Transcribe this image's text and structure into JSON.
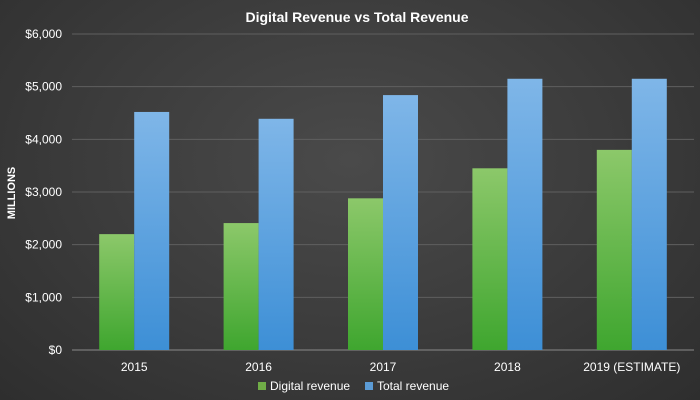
{
  "chart_data": {
    "type": "bar",
    "title": "Digital Revenue vs Total Revenue",
    "xlabel": "",
    "ylabel": "MILLIONS",
    "ylim": [
      0,
      6000
    ],
    "yticks": [
      "$0",
      "$1,000",
      "$2,000",
      "$3,000",
      "$4,000",
      "$5,000",
      "$6,000"
    ],
    "categories": [
      "2015",
      "2016",
      "2017",
      "2018",
      "2019 (ESTIMATE)"
    ],
    "series": [
      {
        "name": "Digital revenue",
        "color": "#70ad47",
        "values": [
          2200,
          2410,
          2880,
          3450,
          3800
        ]
      },
      {
        "name": "Total revenue",
        "color": "#5b9bd5",
        "values": [
          4520,
          4390,
          4840,
          5150,
          5150
        ]
      }
    ],
    "grid": true,
    "legend_position": "bottom"
  }
}
